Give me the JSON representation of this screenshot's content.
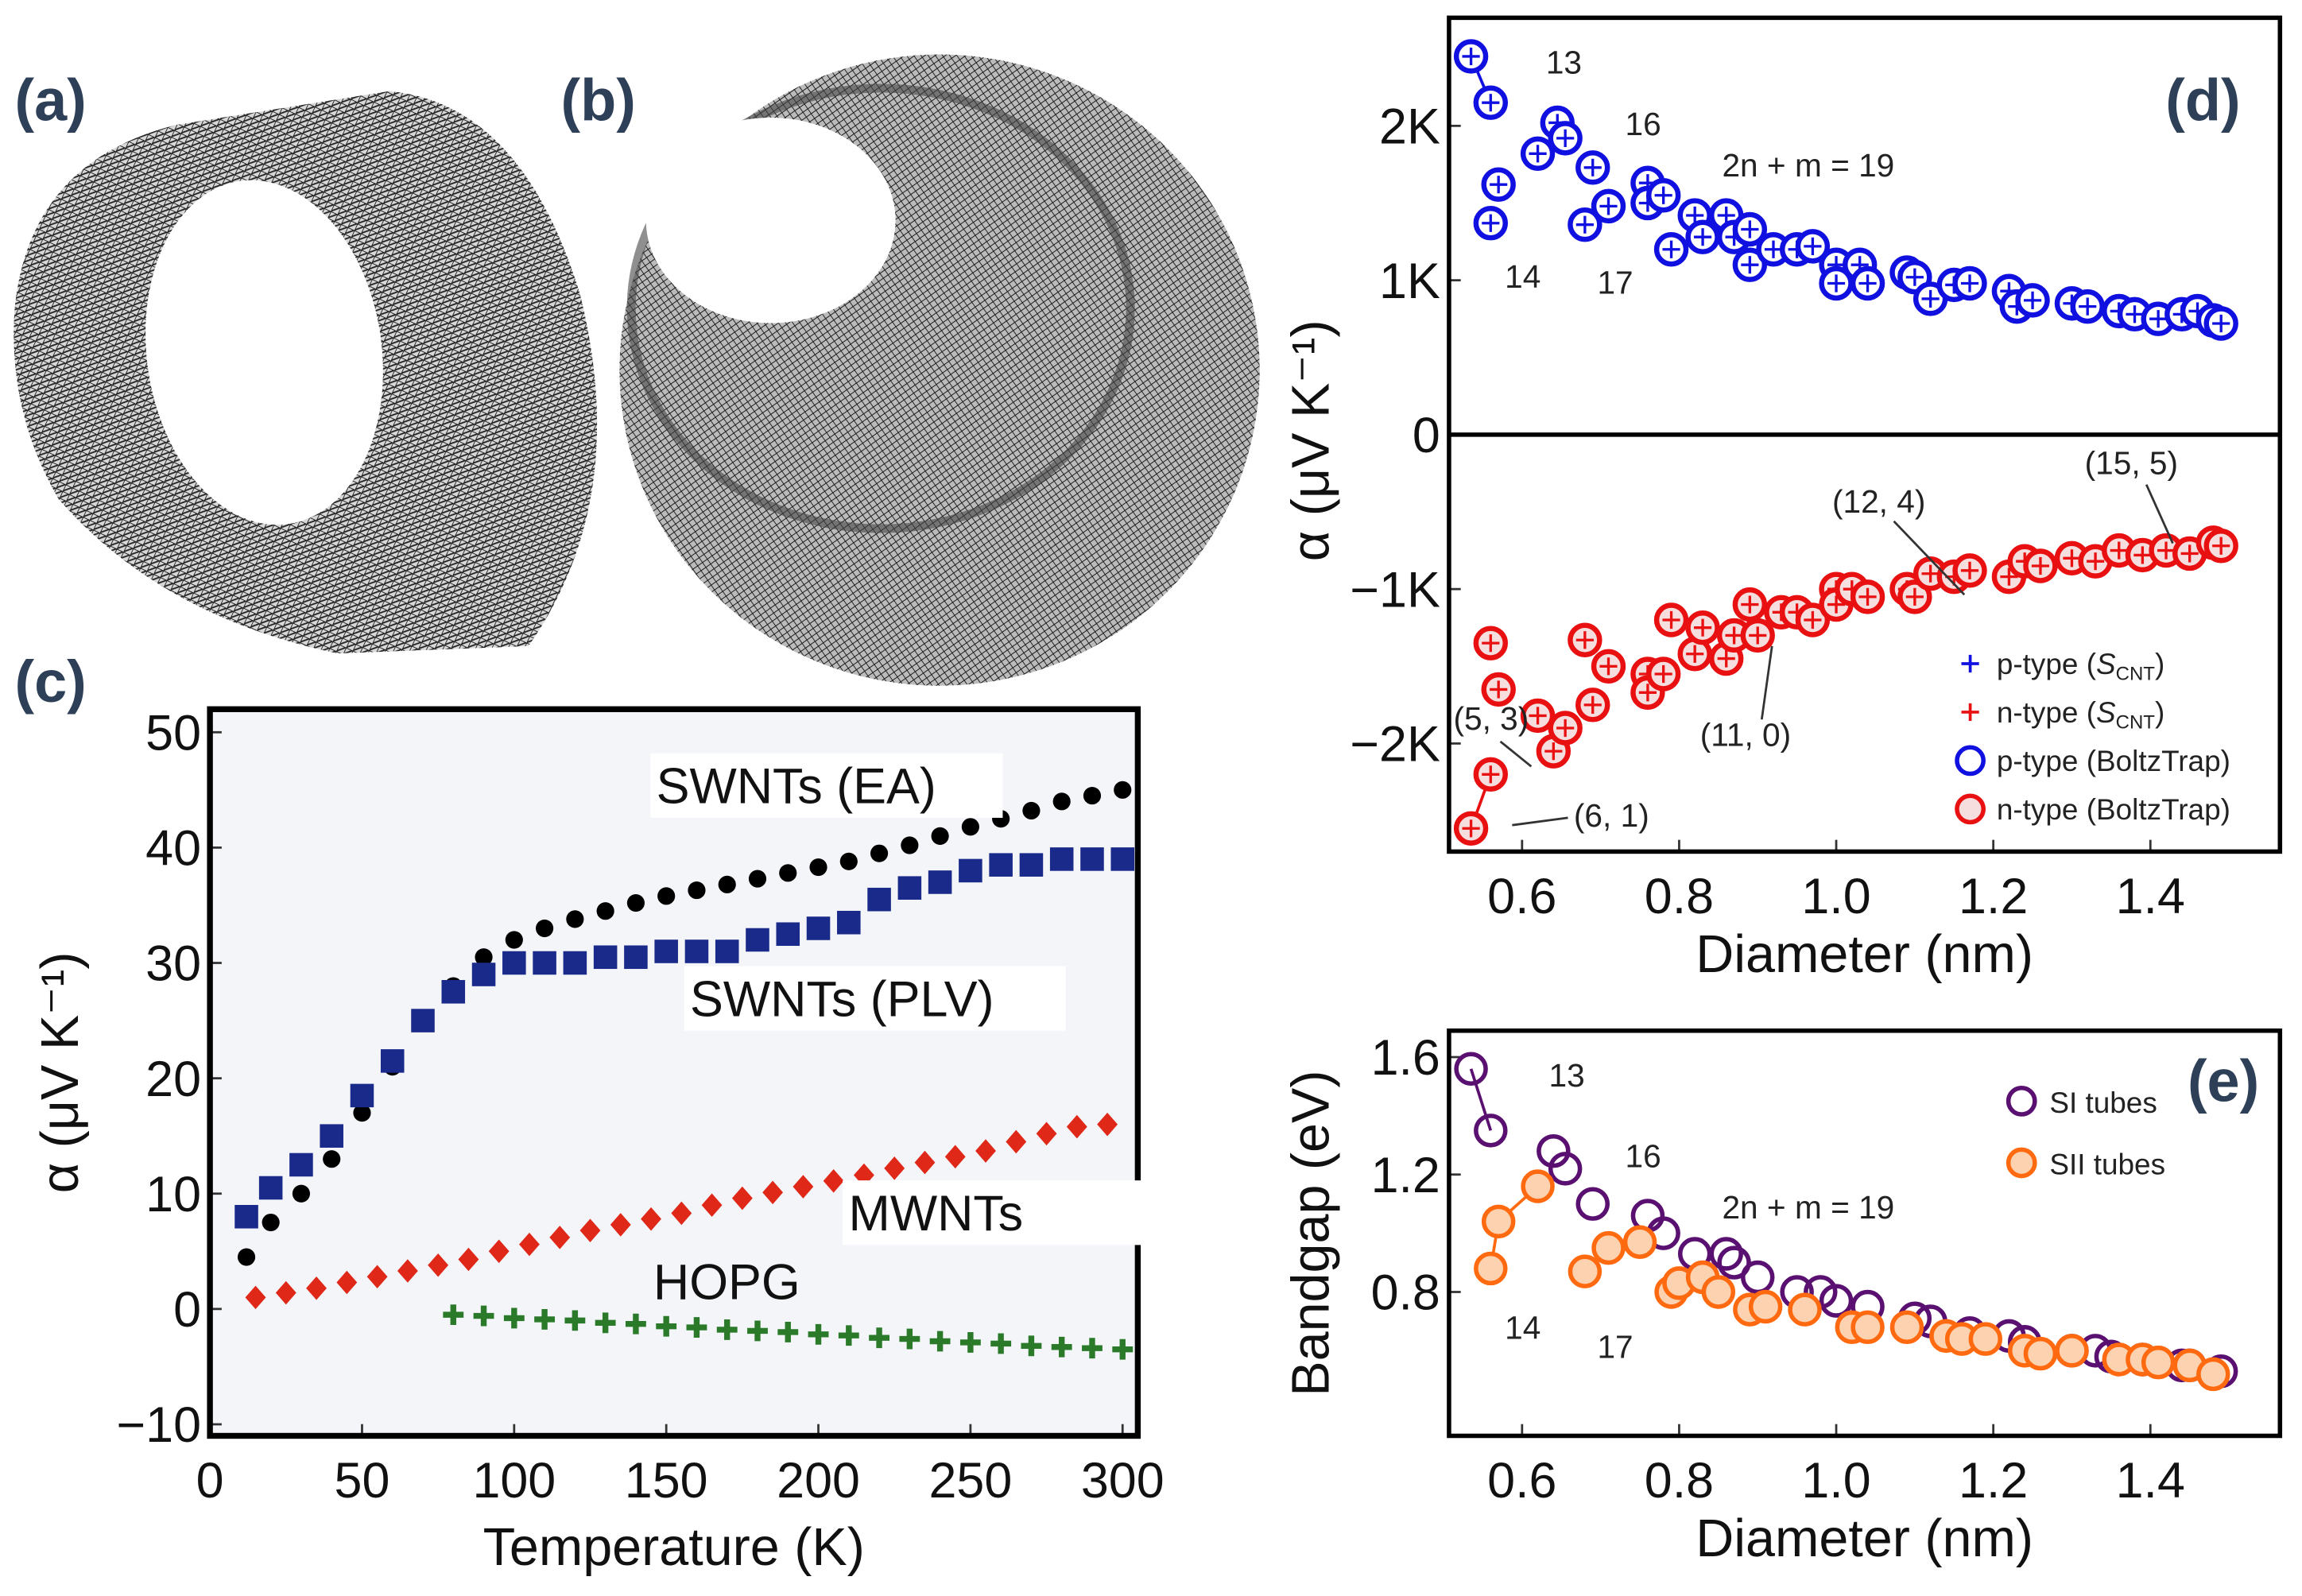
{
  "colors": {
    "panel_letter": "#2e4057",
    "p_type": "#1010e0",
    "n_type": "#e81010",
    "n_fill": "#f7dede",
    "si": "#5a1070",
    "sii": "#ff6a10",
    "sii_fill": "#fcd2b0",
    "ea": "#000000",
    "plv": "#1a2a8a",
    "mwnt": "#e02818",
    "hopg": "#2a7a2a",
    "plot_c_bg": "#f3f5f9"
  },
  "panels": {
    "a": "(a)",
    "b": "(b)",
    "c": "(c)",
    "d": "(d)",
    "e": "(e)"
  },
  "images": {
    "a": "nanotube-cylinder",
    "b": "multiwall-nanotube-end-view"
  },
  "chart_data": [
    {
      "id": "c",
      "type": "scatter",
      "xlabel": "Temperature (K)",
      "ylabel": "α (μV K⁻¹)",
      "xlim": [
        0,
        305
      ],
      "ylim": [
        -11,
        52
      ],
      "xticks": [
        0,
        50,
        100,
        150,
        200,
        250,
        300
      ],
      "yticks": [
        -10,
        0,
        10,
        20,
        30,
        40,
        50
      ],
      "ytick_labels": [
        "−10",
        "0",
        "10",
        "20",
        "30",
        "40",
        "50"
      ],
      "series": [
        {
          "name": "SWNTs (EA)",
          "marker": "circle",
          "color": "#000000",
          "x": [
            12,
            20,
            30,
            40,
            50,
            60,
            70,
            80,
            90,
            100,
            110,
            120,
            130,
            140,
            150,
            160,
            170,
            180,
            190,
            200,
            210,
            220,
            230,
            240,
            250,
            260,
            270,
            280,
            290,
            300
          ],
          "y": [
            4.5,
            7.5,
            10,
            13,
            17,
            21,
            25,
            28,
            30.5,
            32,
            33,
            33.8,
            34.5,
            35.2,
            35.8,
            36.3,
            36.8,
            37.3,
            37.8,
            38.3,
            38.8,
            39.5,
            40.2,
            41,
            41.8,
            42.5,
            43.2,
            44,
            44.5,
            45
          ]
        },
        {
          "name": "SWNTs (PLV)",
          "marker": "square",
          "color": "#1a2a8a",
          "x": [
            12,
            20,
            30,
            40,
            50,
            60,
            70,
            80,
            90,
            100,
            110,
            120,
            130,
            140,
            150,
            160,
            170,
            180,
            190,
            200,
            210,
            220,
            230,
            240,
            250,
            260,
            270,
            280,
            290,
            300
          ],
          "y": [
            8,
            10.5,
            12.5,
            15,
            18.5,
            21.5,
            25,
            27.5,
            29,
            30,
            30,
            30,
            30.5,
            30.5,
            31,
            31,
            31,
            32,
            32.5,
            33,
            33.5,
            35.5,
            36.5,
            37,
            38,
            38.5,
            38.5,
            39,
            39,
            39
          ]
        },
        {
          "name": "MWNTs",
          "marker": "diamond",
          "color": "#e02818",
          "x": [
            15,
            25,
            35,
            45,
            55,
            65,
            75,
            85,
            95,
            105,
            115,
            125,
            135,
            145,
            155,
            165,
            175,
            185,
            195,
            205,
            215,
            225,
            235,
            245,
            255,
            265,
            275,
            285,
            295
          ],
          "y": [
            1,
            1.4,
            1.8,
            2.3,
            2.8,
            3.3,
            3.8,
            4.3,
            5,
            5.6,
            6.2,
            6.8,
            7.3,
            7.8,
            8.3,
            9,
            9.6,
            10.1,
            10.6,
            11.1,
            11.6,
            12.2,
            12.7,
            13.2,
            13.7,
            14.5,
            15.2,
            15.8,
            16
          ]
        },
        {
          "name": "HOPG",
          "marker": "plus",
          "color": "#2a7a2a",
          "x": [
            80,
            90,
            100,
            110,
            120,
            130,
            140,
            150,
            160,
            170,
            180,
            190,
            200,
            210,
            220,
            230,
            240,
            250,
            260,
            270,
            280,
            290,
            300
          ],
          "y": [
            -0.5,
            -0.6,
            -0.8,
            -0.9,
            -1.0,
            -1.2,
            -1.3,
            -1.5,
            -1.6,
            -1.8,
            -1.9,
            -2.0,
            -2.2,
            -2.3,
            -2.5,
            -2.6,
            -2.8,
            -2.9,
            -3.0,
            -3.2,
            -3.3,
            -3.4,
            -3.5
          ]
        }
      ]
    },
    {
      "id": "d",
      "type": "scatter",
      "xlabel": "Diameter (nm)",
      "ylabel": "α (μV K⁻¹)",
      "xlim": [
        0.507,
        1.565
      ],
      "ylim": [
        -2.7,
        2.7
      ],
      "xticks": [
        0.6,
        0.8,
        1.0,
        1.2,
        1.4
      ],
      "xtick_labels": [
        "0.6",
        "0.8",
        "1.0",
        "1.2",
        "1.4"
      ],
      "yticks": [
        2,
        1,
        0,
        -1,
        -2
      ],
      "ytick_labels": [
        "2K",
        "1K",
        "0",
        "−1K",
        "−2K"
      ],
      "y_unit_note": "values in K (thousands of μV K⁻¹)",
      "legend": [
        {
          "marker": "+",
          "color": "#1010e0",
          "pre": "p-type (",
          "sym": "S",
          "sub": "CNT",
          "post": ")"
        },
        {
          "marker": "+",
          "color": "#e81010",
          "pre": "n-type (",
          "sym": "S",
          "sub": "CNT",
          "post": ")"
        },
        {
          "marker": "o",
          "color": "#1010e0",
          "pre": "p-type (BoltzTrap)",
          "sym": "",
          "sub": "",
          "post": ""
        },
        {
          "marker": "o",
          "color": "#e81010",
          "pre": "n-type (BoltzTrap)",
          "sym": "",
          "sub": "",
          "post": ""
        }
      ],
      "annotations": [
        "13",
        "16",
        "14",
        "17",
        "2n + m = 19",
        "(5, 3)",
        "(6, 1)",
        "(11, 0)",
        "(12, 4)",
        "(15, 5)"
      ],
      "series": [
        {
          "name": "p-type",
          "color": "#1010e0",
          "x": [
            0.535,
            0.56,
            0.57,
            0.56,
            0.62,
            0.645,
            0.655,
            0.69,
            0.68,
            0.71,
            0.76,
            0.76,
            0.78,
            0.79,
            0.82,
            0.83,
            0.86,
            0.87,
            0.89,
            0.89,
            0.92,
            0.95,
            0.97,
            1.0,
            1.0,
            1.03,
            1.04,
            1.09,
            1.1,
            1.12,
            1.15,
            1.17,
            1.22,
            1.23,
            1.25,
            1.3,
            1.32,
            1.36,
            1.38,
            1.41,
            1.44,
            1.46,
            1.48,
            1.49
          ],
          "y": [
            2.45,
            2.15,
            1.62,
            1.37,
            1.82,
            2.02,
            1.92,
            1.73,
            1.36,
            1.48,
            1.63,
            1.5,
            1.55,
            1.2,
            1.42,
            1.28,
            1.42,
            1.28,
            1.33,
            1.1,
            1.2,
            1.2,
            1.22,
            1.1,
            0.98,
            1.1,
            0.98,
            1.05,
            1.02,
            0.88,
            0.97,
            0.98,
            0.93,
            0.83,
            0.87,
            0.85,
            0.83,
            0.8,
            0.78,
            0.75,
            0.78,
            0.8,
            0.74,
            0.72
          ]
        },
        {
          "name": "n-type",
          "color": "#e81010",
          "x": [
            0.535,
            0.56,
            0.56,
            0.57,
            0.62,
            0.64,
            0.655,
            0.68,
            0.69,
            0.71,
            0.76,
            0.76,
            0.78,
            0.79,
            0.82,
            0.83,
            0.86,
            0.87,
            0.89,
            0.9,
            0.93,
            0.95,
            0.97,
            1.0,
            1.0,
            1.02,
            1.04,
            1.09,
            1.1,
            1.12,
            1.15,
            1.17,
            1.22,
            1.24,
            1.26,
            1.3,
            1.33,
            1.36,
            1.39,
            1.42,
            1.45,
            1.48,
            1.49
          ],
          "y": [
            -2.55,
            -2.2,
            -1.35,
            -1.65,
            -1.82,
            -2.05,
            -1.9,
            -1.33,
            -1.75,
            -1.5,
            -1.55,
            -1.67,
            -1.55,
            -1.2,
            -1.42,
            -1.25,
            -1.45,
            -1.3,
            -1.1,
            -1.3,
            -1.15,
            -1.15,
            -1.2,
            -1.0,
            -1.1,
            -1.0,
            -1.05,
            -1.0,
            -1.05,
            -0.9,
            -0.92,
            -0.88,
            -0.92,
            -0.82,
            -0.85,
            -0.8,
            -0.82,
            -0.75,
            -0.78,
            -0.75,
            -0.77,
            -0.7,
            -0.72
          ]
        }
      ]
    },
    {
      "id": "e",
      "type": "scatter",
      "xlabel": "Diameter (nm)",
      "ylabel": "Bandgap (eV)",
      "xlim": [
        0.507,
        1.565
      ],
      "ylim": [
        0.31,
        1.69
      ],
      "xticks": [
        0.6,
        0.8,
        1.0,
        1.2,
        1.4
      ],
      "xtick_labels": [
        "0.6",
        "0.8",
        "1.0",
        "1.2",
        "1.4"
      ],
      "yticks": [
        1.6,
        1.2,
        0.8
      ],
      "ytick_labels": [
        "1.6",
        "1.2",
        "0.8"
      ],
      "annotations": [
        "13",
        "16",
        "14",
        "17",
        "2n + m = 19"
      ],
      "series": [
        {
          "name": "SI tubes",
          "color": "#5a1070",
          "fill": "none",
          "x": [
            0.535,
            0.56,
            0.64,
            0.655,
            0.69,
            0.76,
            0.78,
            0.82,
            0.86,
            0.87,
            0.9,
            0.95,
            0.98,
            1.0,
            1.04,
            1.1,
            1.12,
            1.17,
            1.22,
            1.24,
            1.3,
            1.33,
            1.35,
            1.39,
            1.44,
            1.45,
            1.49
          ],
          "y": [
            1.56,
            1.35,
            1.28,
            1.22,
            1.1,
            1.06,
            1.0,
            0.93,
            0.93,
            0.9,
            0.85,
            0.8,
            0.8,
            0.77,
            0.75,
            0.71,
            0.7,
            0.66,
            0.65,
            0.63,
            0.6,
            0.6,
            0.58,
            0.57,
            0.55,
            0.55,
            0.53
          ]
        },
        {
          "name": "SII tubes",
          "color": "#ff6a10",
          "fill": "#fcd2b0",
          "x": [
            0.56,
            0.57,
            0.62,
            0.68,
            0.71,
            0.75,
            0.79,
            0.8,
            0.83,
            0.85,
            0.89,
            0.91,
            0.96,
            1.02,
            1.04,
            1.09,
            1.14,
            1.16,
            1.19,
            1.24,
            1.26,
            1.3,
            1.36,
            1.39,
            1.41,
            1.45,
            1.48
          ],
          "y": [
            0.88,
            1.04,
            1.16,
            0.87,
            0.95,
            0.97,
            0.8,
            0.83,
            0.85,
            0.8,
            0.74,
            0.75,
            0.74,
            0.68,
            0.68,
            0.68,
            0.65,
            0.64,
            0.64,
            0.6,
            0.59,
            0.6,
            0.57,
            0.57,
            0.56,
            0.55,
            0.52
          ]
        }
      ]
    }
  ]
}
